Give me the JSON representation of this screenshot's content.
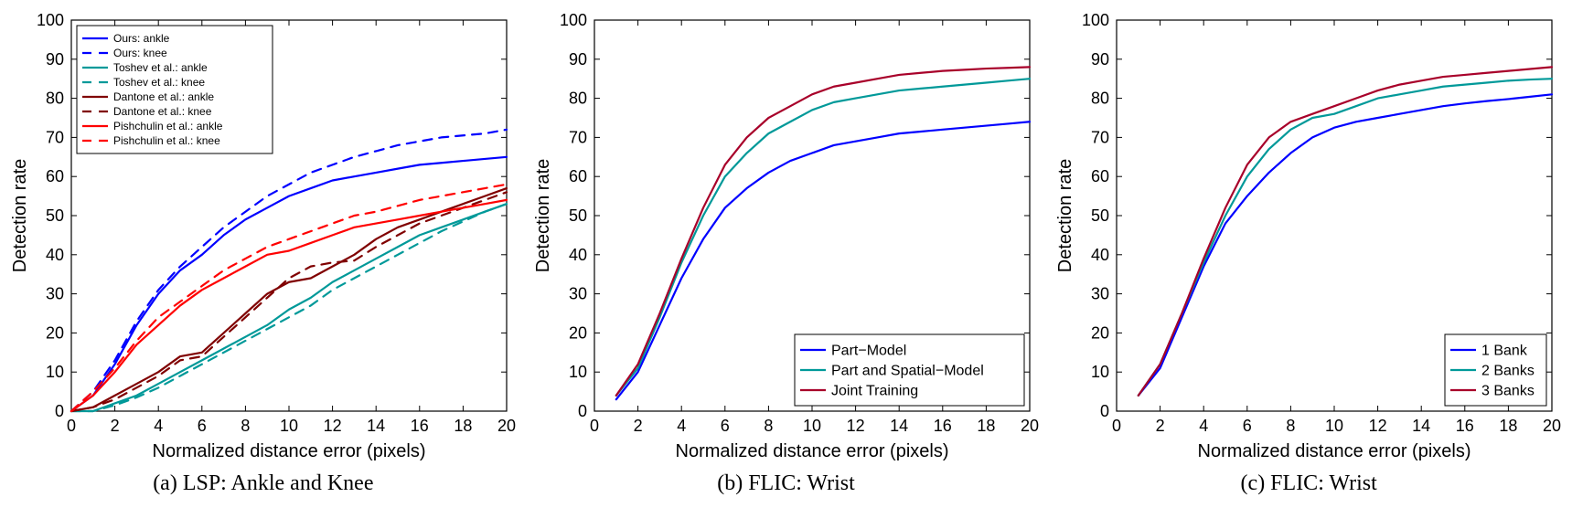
{
  "figure": {
    "total_width": 1719,
    "total_height": 579,
    "background_color": "#ffffff"
  },
  "axis_style": {
    "xlim": [
      0,
      20
    ],
    "ylim": [
      0,
      100
    ],
    "xtick_step": 2,
    "ytick_step": 10,
    "xlabel": "Normalized distance error (pixels)",
    "ylabel": "Detection rate",
    "label_fontsize": 20,
    "tick_fontsize": 18,
    "grid": false,
    "box_color": "#000000",
    "tick_color": "#000000",
    "line_width": 2.2,
    "tick_len": 6,
    "tick_font_family": "Helvetica, Arial, sans-serif",
    "label_font_family": "Helvetica, Arial, sans-serif"
  },
  "legend_style": {
    "border_color": "#000000",
    "bg_color": "#ffffff",
    "text_color": "#000000",
    "line_len": 28,
    "row_height_small": 16,
    "row_height_large": 22,
    "fontsize_small": 12,
    "fontsize_large": 16,
    "padding": 6
  },
  "colors": {
    "blue": "#0000ff",
    "teal": "#009999",
    "maroon": "#800000",
    "red": "#ff0000",
    "dkred": "#a8002a"
  },
  "panels": [
    {
      "id": "a",
      "type": "line",
      "caption": "(a) LSP: Ankle and Knee",
      "legend": {
        "pos": "top-left",
        "fontsize_key": "small",
        "items": [
          {
            "label": "Ours: ankle",
            "color_key": "blue",
            "dash": "solid"
          },
          {
            "label": "Ours: knee",
            "color_key": "blue",
            "dash": "dashed"
          },
          {
            "label": "Toshev et al.: ankle",
            "color_key": "teal",
            "dash": "solid"
          },
          {
            "label": "Toshev et al.: knee",
            "color_key": "teal",
            "dash": "dashed"
          },
          {
            "label": "Dantone et al.: ankle",
            "color_key": "maroon",
            "dash": "solid"
          },
          {
            "label": "Dantone et al.: knee",
            "color_key": "maroon",
            "dash": "dashed"
          },
          {
            "label": "Pishchulin et al.: ankle",
            "color_key": "red",
            "dash": "solid"
          },
          {
            "label": "Pishchulin et al.: knee",
            "color_key": "red",
            "dash": "dashed"
          }
        ]
      },
      "series": [
        {
          "color_key": "blue",
          "dash": "solid",
          "x": [
            0,
            1,
            2,
            3,
            4,
            5,
            6,
            7,
            8,
            9,
            10,
            11,
            12,
            13,
            14,
            15,
            16,
            17,
            18,
            19,
            20
          ],
          "y": [
            0,
            4,
            12,
            22,
            30,
            36,
            40,
            45,
            49,
            52,
            55,
            57,
            59,
            60,
            61,
            62,
            63,
            63.5,
            64,
            64.5,
            65
          ]
        },
        {
          "color_key": "blue",
          "dash": "dashed",
          "x": [
            0,
            1,
            2,
            3,
            4,
            5,
            6,
            7,
            8,
            9,
            10,
            11,
            12,
            13,
            14,
            15,
            16,
            17,
            18,
            19,
            20
          ],
          "y": [
            0,
            5,
            13,
            23,
            31,
            37,
            42,
            47,
            51,
            55,
            58,
            61,
            63,
            65,
            66.5,
            68,
            69,
            70,
            70.5,
            71,
            72
          ]
        },
        {
          "color_key": "teal",
          "dash": "solid",
          "x": [
            0,
            1,
            2,
            3,
            4,
            5,
            6,
            7,
            8,
            9,
            10,
            11,
            12,
            13,
            14,
            15,
            16,
            17,
            18,
            19,
            20
          ],
          "y": [
            0,
            0,
            2,
            4,
            7,
            10,
            13,
            16,
            19,
            22,
            26,
            29,
            33,
            36,
            39,
            42,
            45,
            47,
            49,
            51,
            53
          ]
        },
        {
          "color_key": "teal",
          "dash": "dashed",
          "x": [
            0,
            1,
            2,
            3,
            4,
            5,
            6,
            7,
            8,
            9,
            10,
            11,
            12,
            13,
            14,
            15,
            16,
            17,
            18,
            19,
            20
          ],
          "y": [
            0,
            0,
            1.5,
            3.5,
            6,
            9,
            12,
            15,
            18,
            21,
            24,
            27,
            31,
            34,
            37,
            40,
            43,
            46,
            48.5,
            51,
            53
          ]
        },
        {
          "color_key": "maroon",
          "dash": "solid",
          "x": [
            0,
            1,
            2,
            3,
            4,
            5,
            6,
            7,
            8,
            9,
            10,
            11,
            12,
            13,
            14,
            15,
            16,
            17,
            18,
            19,
            20
          ],
          "y": [
            0,
            1,
            4,
            7,
            10,
            14,
            15,
            20,
            25,
            30,
            33,
            34,
            37,
            40,
            44,
            47,
            49,
            51,
            53,
            55,
            57
          ]
        },
        {
          "color_key": "maroon",
          "dash": "dashed",
          "x": [
            0,
            1,
            2,
            3,
            4,
            5,
            6,
            7,
            8,
            9,
            10,
            11,
            12,
            13,
            14,
            15,
            16,
            17,
            18,
            19,
            20
          ],
          "y": [
            0,
            1,
            3,
            6,
            9,
            13,
            14,
            19,
            24,
            29,
            34,
            37,
            38,
            38.5,
            42,
            45,
            48,
            50,
            52,
            54,
            56
          ]
        },
        {
          "color_key": "red",
          "dash": "solid",
          "x": [
            0,
            1,
            2,
            3,
            4,
            5,
            6,
            7,
            8,
            9,
            10,
            11,
            12,
            13,
            14,
            15,
            16,
            17,
            18,
            19,
            20
          ],
          "y": [
            0,
            4,
            10,
            17,
            22,
            27,
            31,
            34,
            37,
            40,
            41,
            43,
            45,
            47,
            48,
            49,
            50,
            51,
            52,
            53,
            54
          ]
        },
        {
          "color_key": "red",
          "dash": "dashed",
          "x": [
            0,
            1,
            2,
            3,
            4,
            5,
            6,
            7,
            8,
            9,
            10,
            11,
            12,
            13,
            14,
            15,
            16,
            17,
            18,
            19,
            20
          ],
          "y": [
            0,
            5,
            11,
            18,
            24,
            28,
            32,
            36,
            39,
            42,
            44,
            46,
            48,
            50,
            51,
            52.5,
            54,
            55,
            56,
            57,
            58
          ]
        }
      ]
    },
    {
      "id": "b",
      "type": "line",
      "caption": "(b) FLIC: Wrist",
      "legend": {
        "pos": "bottom-right",
        "fontsize_key": "large",
        "items": [
          {
            "label": "Part−Model",
            "color_key": "blue",
            "dash": "solid"
          },
          {
            "label": "Part and Spatial−Model",
            "color_key": "teal",
            "dash": "solid"
          },
          {
            "label": "Joint Training",
            "color_key": "dkred",
            "dash": "solid"
          }
        ]
      },
      "series": [
        {
          "color_key": "blue",
          "dash": "solid",
          "x": [
            1,
            2,
            3,
            4,
            5,
            6,
            7,
            8,
            9,
            10,
            11,
            12,
            13,
            14,
            15,
            16,
            17,
            18,
            19,
            20
          ],
          "y": [
            3,
            10,
            22,
            34,
            44,
            52,
            57,
            61,
            64,
            66,
            68,
            69,
            70,
            71,
            71.5,
            72,
            72.5,
            73,
            73.5,
            74
          ]
        },
        {
          "color_key": "teal",
          "dash": "solid",
          "x": [
            1,
            2,
            3,
            4,
            5,
            6,
            7,
            8,
            9,
            10,
            11,
            12,
            13,
            14,
            15,
            16,
            17,
            18,
            19,
            20
          ],
          "y": [
            4,
            11,
            24,
            38,
            50,
            60,
            66,
            71,
            74,
            77,
            79,
            80,
            81,
            82,
            82.5,
            83,
            83.5,
            84,
            84.5,
            85
          ]
        },
        {
          "color_key": "dkred",
          "dash": "solid",
          "x": [
            1,
            2,
            3,
            4,
            5,
            6,
            7,
            8,
            9,
            10,
            11,
            12,
            13,
            14,
            15,
            16,
            17,
            18,
            19,
            20
          ],
          "y": [
            4,
            12,
            25,
            39,
            52,
            63,
            70,
            75,
            78,
            81,
            83,
            84,
            85,
            86,
            86.5,
            87,
            87.3,
            87.6,
            87.8,
            88
          ]
        }
      ]
    },
    {
      "id": "c",
      "type": "line",
      "caption": "(c) FLIC: Wrist",
      "legend": {
        "pos": "bottom-right",
        "fontsize_key": "large",
        "items": [
          {
            "label": "1 Bank",
            "color_key": "blue",
            "dash": "solid"
          },
          {
            "label": "2 Banks",
            "color_key": "teal",
            "dash": "solid"
          },
          {
            "label": "3 Banks",
            "color_key": "dkred",
            "dash": "solid"
          }
        ]
      },
      "series": [
        {
          "color_key": "blue",
          "dash": "solid",
          "x": [
            1,
            2,
            3,
            4,
            5,
            6,
            7,
            8,
            9,
            10,
            11,
            12,
            13,
            14,
            15,
            16,
            17,
            18,
            19,
            20
          ],
          "y": [
            4,
            11,
            24,
            37,
            48,
            55,
            61,
            66,
            70,
            72.5,
            74,
            75,
            76,
            77,
            78,
            78.7,
            79.3,
            79.8,
            80.4,
            81
          ]
        },
        {
          "color_key": "teal",
          "dash": "solid",
          "x": [
            1,
            2,
            3,
            4,
            5,
            6,
            7,
            8,
            9,
            10,
            11,
            12,
            13,
            14,
            15,
            16,
            17,
            18,
            19,
            20
          ],
          "y": [
            4,
            12,
            25,
            38,
            50,
            60,
            67,
            72,
            75,
            76,
            78,
            80,
            81,
            82,
            83,
            83.5,
            84,
            84.5,
            84.8,
            85
          ]
        },
        {
          "color_key": "dkred",
          "dash": "solid",
          "x": [
            1,
            2,
            3,
            4,
            5,
            6,
            7,
            8,
            9,
            10,
            11,
            12,
            13,
            14,
            15,
            16,
            17,
            18,
            19,
            20
          ],
          "y": [
            4,
            12,
            25,
            39,
            52,
            63,
            70,
            74,
            76,
            78,
            80,
            82,
            83.5,
            84.5,
            85.5,
            86,
            86.5,
            87,
            87.5,
            88
          ]
        }
      ]
    }
  ]
}
